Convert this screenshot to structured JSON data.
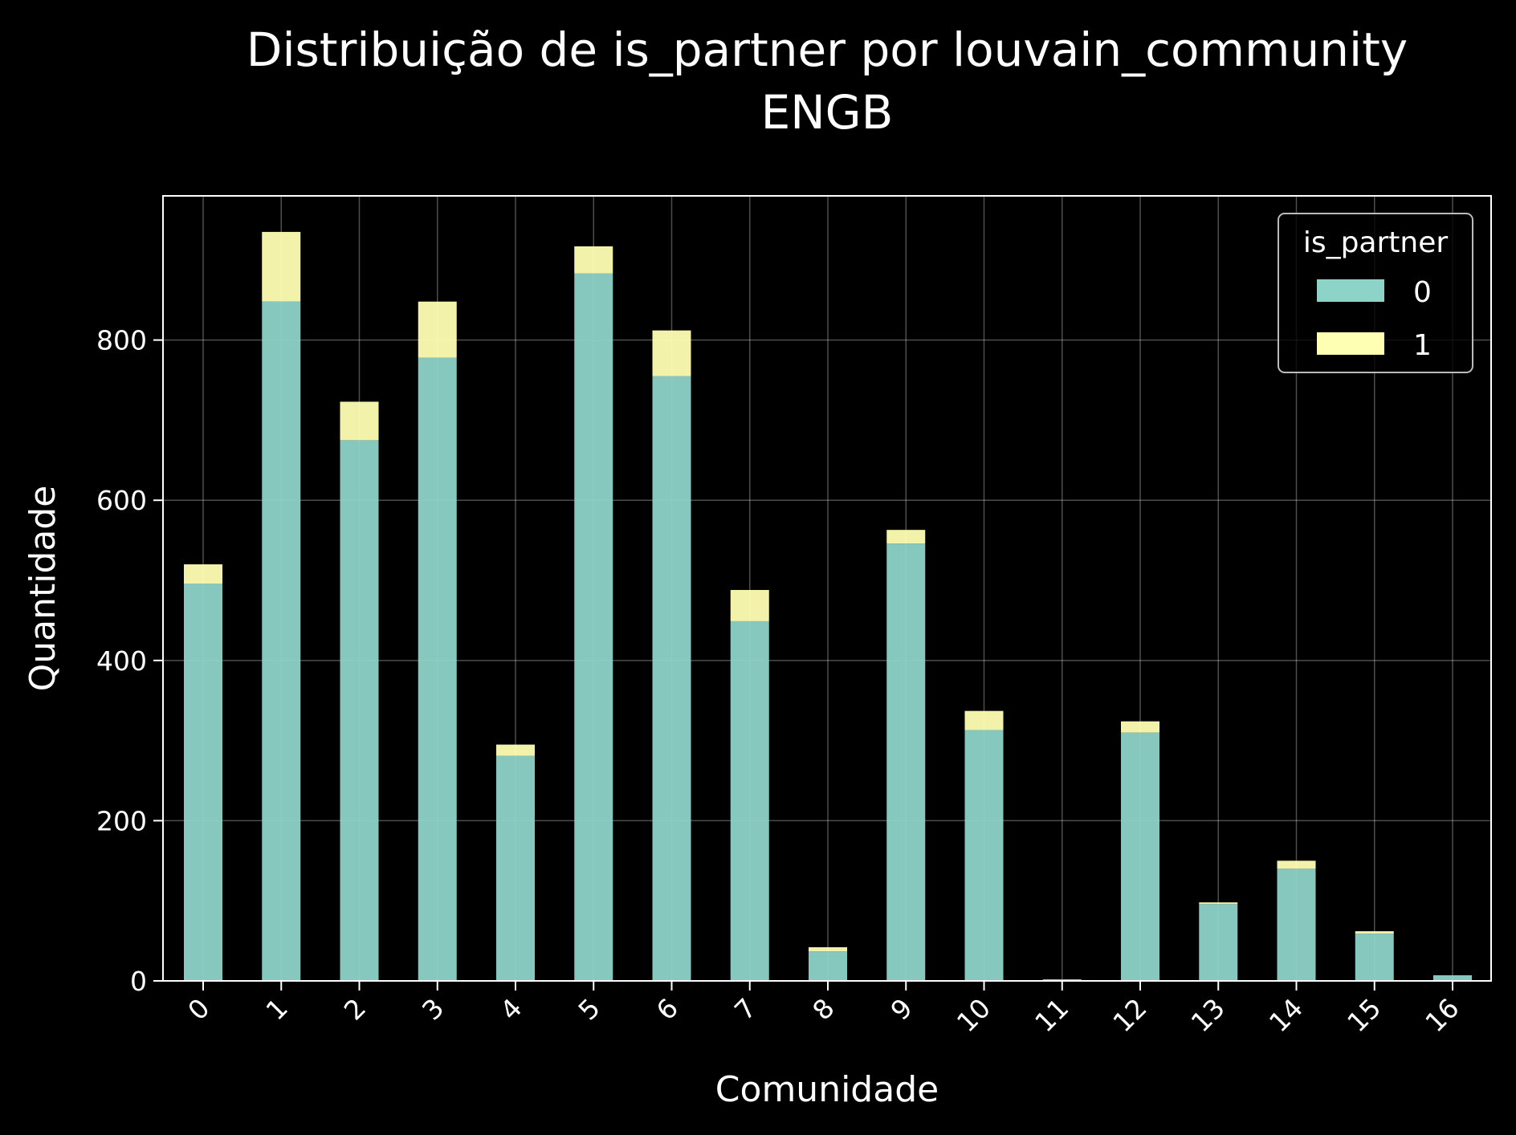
{
  "chart_data": {
    "type": "bar",
    "stacked": true,
    "title": "Distribuição de is_partner por louvain_community",
    "subtitle": "ENGB",
    "xlabel": "Comunidade",
    "ylabel": "Quantidade",
    "categories": [
      "0",
      "1",
      "2",
      "3",
      "4",
      "5",
      "6",
      "7",
      "8",
      "9",
      "10",
      "11",
      "12",
      "13",
      "14",
      "15",
      "16"
    ],
    "series": [
      {
        "name": "0",
        "color": "#8dd3c7",
        "values": [
          496,
          848,
          675,
          778,
          281,
          883,
          755,
          449,
          37,
          546,
          313,
          2,
          310,
          96,
          140,
          59,
          7
        ]
      },
      {
        "name": "1",
        "color": "#ffffb3",
        "values": [
          24,
          87,
          48,
          70,
          14,
          34,
          57,
          39,
          5,
          17,
          24,
          0,
          14,
          2,
          10,
          3,
          0
        ]
      }
    ],
    "ylim": [
      0,
      980
    ],
    "yticks": [
      0,
      200,
      400,
      600,
      800
    ],
    "grid": true,
    "legend": {
      "title": "is_partner",
      "position": "top-right",
      "labels": [
        "0",
        "1"
      ]
    }
  }
}
